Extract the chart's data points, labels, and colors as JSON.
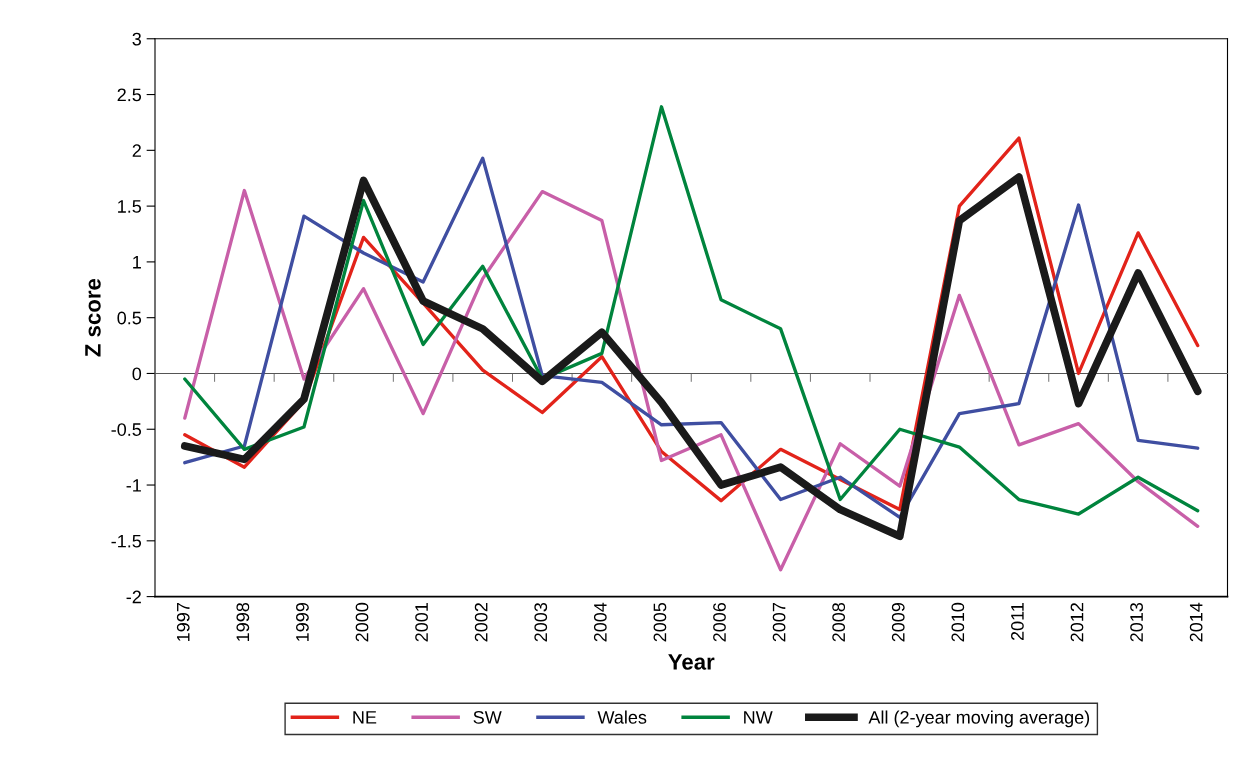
{
  "chart_data": {
    "type": "line",
    "xlabel": "Year",
    "ylabel": "Z score",
    "categories": [
      "1997",
      "1998",
      "1999",
      "2000",
      "2001",
      "2002",
      "2003",
      "2004",
      "2005",
      "2006",
      "2007",
      "2008",
      "2009",
      "2010",
      "2011",
      "2012",
      "2013",
      "2014"
    ],
    "series": [
      {
        "name": "NE",
        "color": "#e2231a",
        "values": [
          -0.55,
          -0.84,
          -0.25,
          1.22,
          0.63,
          0.03,
          -0.35,
          0.15,
          -0.7,
          -1.14,
          -0.68,
          -0.95,
          -1.22,
          1.5,
          2.11,
          0.0,
          1.26,
          0.25
        ]
      },
      {
        "name": "SW",
        "color": "#c85fa8",
        "values": [
          -0.4,
          1.64,
          -0.05,
          0.76,
          -0.36,
          0.85,
          1.63,
          1.37,
          -0.78,
          -0.55,
          -1.76,
          -0.63,
          -1.01,
          0.7,
          -0.64,
          -0.45,
          -0.97,
          -1.37
        ]
      },
      {
        "name": "Wales",
        "color": "#3f4ea1",
        "values": [
          -0.8,
          -0.65,
          1.41,
          1.08,
          0.82,
          1.93,
          -0.02,
          -0.08,
          -0.46,
          -0.44,
          -1.13,
          -0.93,
          -1.29,
          -0.36,
          -0.27,
          1.51,
          -0.6,
          -0.67
        ]
      },
      {
        "name": "NW",
        "color": "#00843d",
        "values": [
          -0.05,
          -0.68,
          -0.48,
          1.55,
          0.26,
          0.96,
          -0.05,
          0.18,
          2.39,
          0.66,
          0.4,
          -1.13,
          -0.5,
          -0.66,
          -1.13,
          -1.26,
          -0.93,
          -1.23
        ]
      },
      {
        "name": "All (2-year moving average)",
        "color": "#1a1a1a",
        "values": [
          -0.65,
          -0.77,
          -0.23,
          1.73,
          0.65,
          0.4,
          -0.07,
          0.37,
          -0.26,
          -1.0,
          -0.84,
          -1.22,
          -1.46,
          1.37,
          1.76,
          -0.27,
          0.9,
          -0.16
        ]
      }
    ],
    "ylim": [
      -2,
      3
    ],
    "yticks": [
      -2,
      -1.5,
      -1,
      -0.5,
      0,
      0.5,
      1,
      1.5,
      2,
      2.5,
      3
    ],
    "legend": "bottom",
    "marker": "none",
    "line_style": "solid"
  }
}
